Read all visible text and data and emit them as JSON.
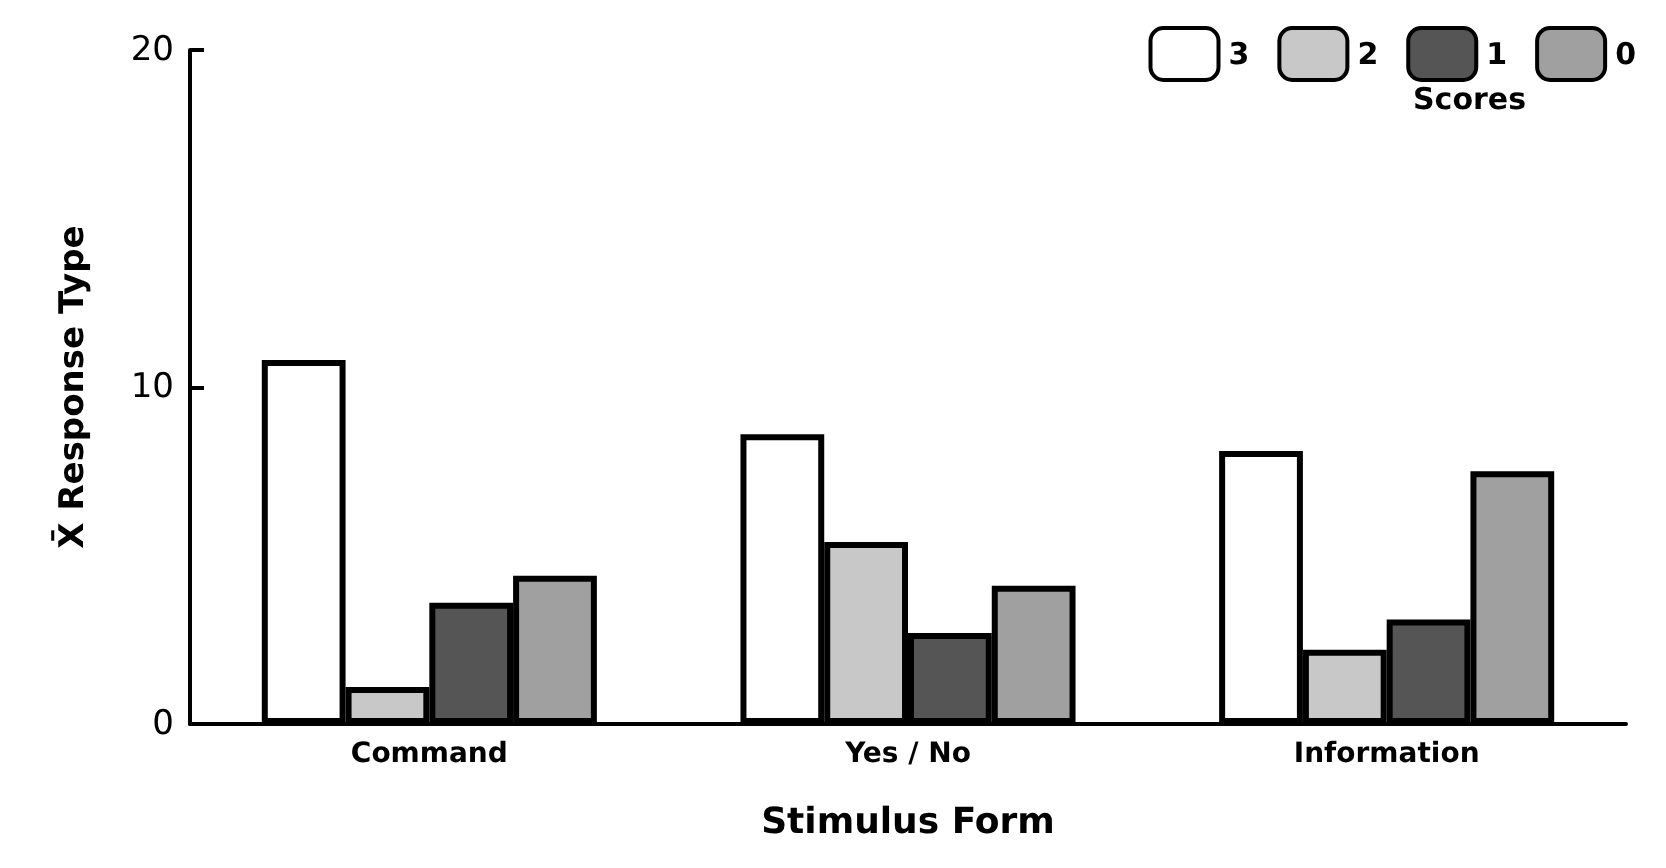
{
  "chart_data": {
    "type": "bar",
    "xlabel": "Stimulus Form",
    "ylabel": "X̄ Response Type",
    "legend_title": "Scores",
    "categories": [
      "Command",
      "Yes / No",
      "Information"
    ],
    "series": [
      {
        "name": "3",
        "color": "#ffffff",
        "values": [
          10.8,
          8.6,
          8.1
        ]
      },
      {
        "name": "2",
        "color": "#c8c8c8",
        "values": [
          1.1,
          5.4,
          2.2
        ]
      },
      {
        "name": "1",
        "color": "#555555",
        "values": [
          3.6,
          2.7,
          3.1
        ]
      },
      {
        "name": "0",
        "color": "#a0a0a0",
        "values": [
          4.4,
          4.1,
          7.5
        ]
      }
    ],
    "ylim": [
      0,
      20
    ],
    "yticks": [
      0,
      10,
      20
    ],
    "grid": false,
    "legend": "top right"
  }
}
